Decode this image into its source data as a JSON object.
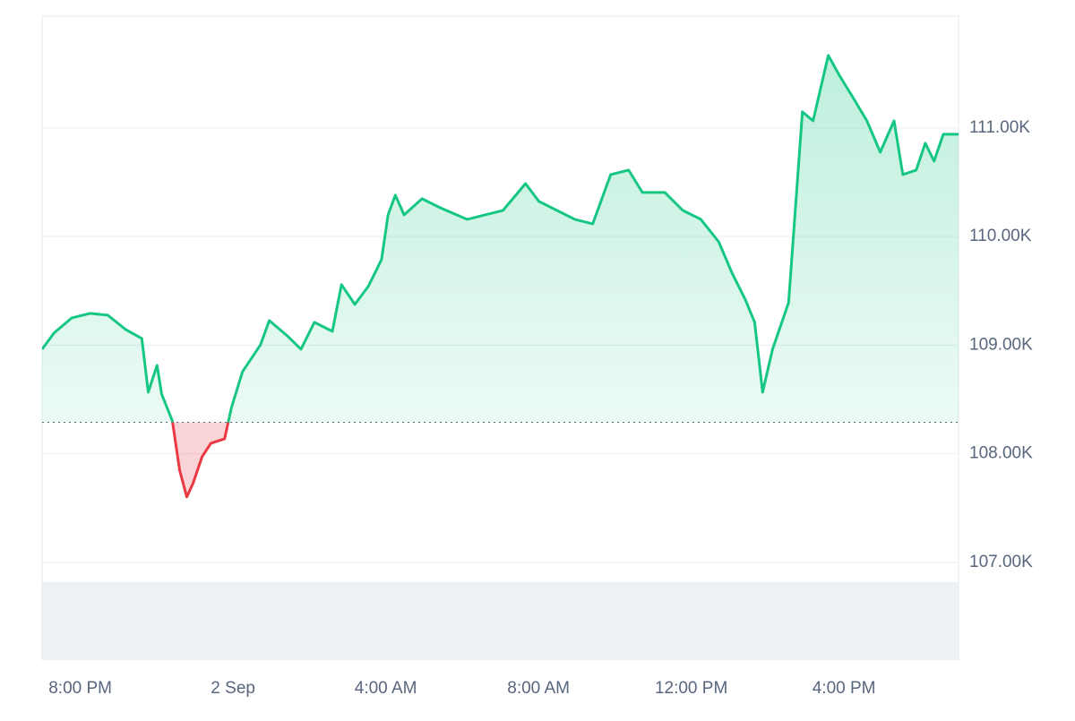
{
  "chart_data": {
    "type": "line",
    "x": [
      19.0,
      19.31,
      19.78,
      20.25,
      20.72,
      21.19,
      21.61,
      21.78,
      22.01,
      22.13,
      22.41,
      22.6,
      22.79,
      22.95,
      23.19,
      23.42,
      23.78,
      23.96,
      24.25,
      24.72,
      24.95,
      25.42,
      25.78,
      26.13,
      26.6,
      26.84,
      27.19,
      27.54,
      27.89,
      28.06,
      28.25,
      28.48,
      28.95,
      29.42,
      30.13,
      30.6,
      31.07,
      31.66,
      32.01,
      32.48,
      32.95,
      33.42,
      33.89,
      34.36,
      34.72,
      35.31,
      35.78,
      36.25,
      36.72,
      37.07,
      37.42,
      37.66,
      37.87,
      38.13,
      38.55,
      38.91,
      39.19,
      39.59,
      39.89,
      40.25,
      40.6,
      40.95,
      41.31,
      41.54,
      41.89,
      42.13,
      42.36,
      42.6,
      43.0
    ],
    "values": [
      108963,
      109111,
      109251,
      109293,
      109276,
      109144,
      109062,
      108567,
      108814,
      108550,
      108303,
      107849,
      107602,
      107726,
      107973,
      108097,
      108138,
      108427,
      108757,
      109004,
      109227,
      109086,
      108963,
      109210,
      109128,
      109557,
      109375,
      109540,
      109788,
      110200,
      110381,
      110200,
      110348,
      110266,
      110159,
      110200,
      110241,
      110488,
      110324,
      110241,
      110159,
      110117,
      110571,
      110612,
      110406,
      110406,
      110241,
      110159,
      109952,
      109664,
      109416,
      109210,
      108567,
      108963,
      109392,
      111148,
      111066,
      111668,
      111478,
      111272,
      111066,
      110777,
      111066,
      110571,
      110612,
      110860,
      110695,
      110942,
      110942
    ],
    "color": "#16c784",
    "negative_color": "#ea3943",
    "baseline": 108290,
    "xlim": [
      19,
      43
    ],
    "xticks": [
      {
        "value": 20,
        "label": "8:00 PM"
      },
      {
        "value": 24,
        "label": "2 Sep"
      },
      {
        "value": 28,
        "label": "4:00 AM"
      },
      {
        "value": 32,
        "label": "8:00 AM"
      },
      {
        "value": 36,
        "label": "12:00 PM"
      },
      {
        "value": 40,
        "label": "4:00 PM"
      }
    ],
    "ylim": [
      106100,
      112030
    ],
    "yticks": [
      {
        "value": 107000,
        "label": "107.00K"
      },
      {
        "value": 108000,
        "label": "108.00K"
      },
      {
        "value": 109000,
        "label": "109.00K"
      },
      {
        "value": 110000,
        "label": "110.00K"
      },
      {
        "value": 111000,
        "label": "111.00K"
      }
    ],
    "grid": true
  }
}
